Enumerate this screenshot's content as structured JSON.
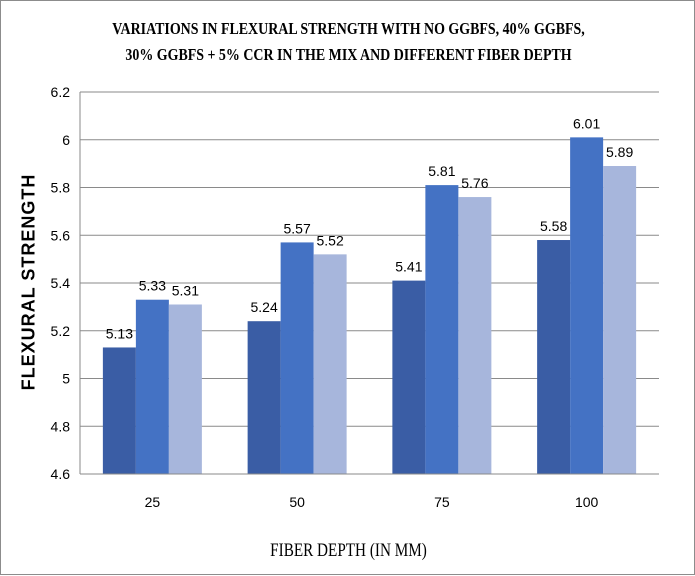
{
  "chart_data": {
    "type": "bar",
    "title_lines": [
      "VARIATIONS  IN  FLEXURAL STRENGTH WITH NO GGBFS, 40% GGBFS,",
      "30% GGBFS + 5% CCR IN THE MIX AND DIFFERENT FIBER DEPTH"
    ],
    "xlabel": "FIBER DEPTH (IN MM)",
    "ylabel": "FLEXURAL STRENGTH",
    "categories": [
      "25",
      "50",
      "75",
      "100"
    ],
    "series": [
      {
        "values": [
          5.13,
          5.24,
          5.41,
          5.58
        ],
        "color": "#3a5da5"
      },
      {
        "values": [
          5.33,
          5.57,
          5.81,
          6.01
        ],
        "color": "#4472c4"
      },
      {
        "values": [
          5.31,
          5.52,
          5.76,
          5.89
        ],
        "color": "#a7b6dc"
      }
    ],
    "ylim": [
      4.6,
      6.2
    ],
    "yticks": [
      "4.6",
      "4.8",
      "5",
      "5.2",
      "5.4",
      "5.6",
      "5.8",
      "6",
      "6.2"
    ],
    "grid": true,
    "legend": "none"
  }
}
